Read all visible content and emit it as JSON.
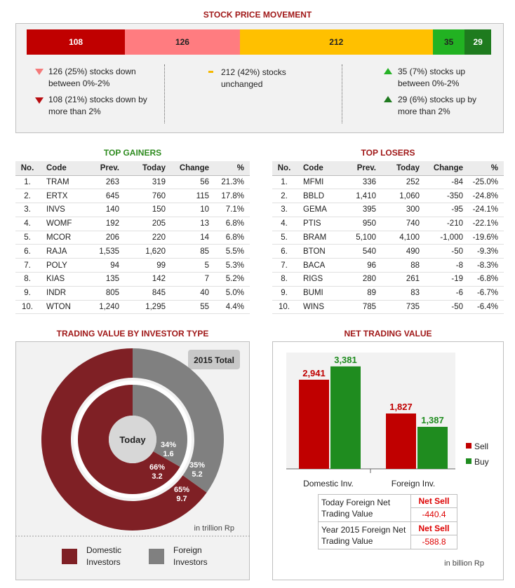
{
  "colors": {
    "down_dark": "#c00000",
    "down_light": "#ff7c80",
    "unchanged": "#ffc000",
    "up_light": "#22b222",
    "up_dark": "#1e7b1e",
    "domestic": "#7f2025",
    "foreign": "#808080"
  },
  "movement": {
    "title": "STOCK PRICE MOVEMENT",
    "segments": [
      {
        "label": "108",
        "value": 108
      },
      {
        "label": "126",
        "value": 126
      },
      {
        "label": "212",
        "value": 212
      },
      {
        "label": "35",
        "value": 35
      },
      {
        "label": "29",
        "value": 29
      }
    ],
    "legend": {
      "down_0_2": "126 (25%) stocks down between 0%-2%",
      "down_2": "108 (21%) stocks down by more than 2%",
      "unchanged": "212 (42%) stocks unchanged",
      "up_0_2": "35 (7%) stocks up between 0%-2%",
      "up_2": "29 (6%) stocks up by more than 2%"
    }
  },
  "gainers": {
    "title": "TOP GAINERS",
    "headers": [
      "No.",
      "Code",
      "Prev.",
      "Today",
      "Change",
      "%"
    ],
    "rows": [
      [
        "1.",
        "TRAM",
        "263",
        "319",
        "56",
        "21.3%"
      ],
      [
        "2.",
        "ERTX",
        "645",
        "760",
        "115",
        "17.8%"
      ],
      [
        "3.",
        "INVS",
        "140",
        "150",
        "10",
        "7.1%"
      ],
      [
        "4.",
        "WOMF",
        "192",
        "205",
        "13",
        "6.8%"
      ],
      [
        "5.",
        "MCOR",
        "206",
        "220",
        "14",
        "6.8%"
      ],
      [
        "6.",
        "RAJA",
        "1,535",
        "1,620",
        "85",
        "5.5%"
      ],
      [
        "7.",
        "POLY",
        "94",
        "99",
        "5",
        "5.3%"
      ],
      [
        "8.",
        "KIAS",
        "135",
        "142",
        "7",
        "5.2%"
      ],
      [
        "9.",
        "INDR",
        "805",
        "845",
        "40",
        "5.0%"
      ],
      [
        "10.",
        "WTON",
        "1,240",
        "1,295",
        "55",
        "4.4%"
      ]
    ]
  },
  "losers": {
    "title": "TOP LOSERS",
    "headers": [
      "No.",
      "Code",
      "Prev.",
      "Today",
      "Change",
      "%"
    ],
    "rows": [
      [
        "1.",
        "MFMI",
        "336",
        "252",
        "-84",
        "-25.0%"
      ],
      [
        "2.",
        "BBLD",
        "1,410",
        "1,060",
        "-350",
        "-24.8%"
      ],
      [
        "3.",
        "GEMA",
        "395",
        "300",
        "-95",
        "-24.1%"
      ],
      [
        "4.",
        "PTIS",
        "950",
        "740",
        "-210",
        "-22.1%"
      ],
      [
        "5.",
        "BRAM",
        "5,100",
        "4,100",
        "-1,000",
        "-19.6%"
      ],
      [
        "6.",
        "BTON",
        "540",
        "490",
        "-50",
        "-9.3%"
      ],
      [
        "7.",
        "BACA",
        "96",
        "88",
        "-8",
        "-8.3%"
      ],
      [
        "8.",
        "RIGS",
        "280",
        "261",
        "-19",
        "-6.8%"
      ],
      [
        "9.",
        "BUMI",
        "89",
        "83",
        "-6",
        "-6.7%"
      ],
      [
        "10.",
        "WINS",
        "785",
        "735",
        "-50",
        "-6.4%"
      ]
    ]
  },
  "investor": {
    "title": "TRADING VALUE BY INVESTOR TYPE",
    "total_label": "2015 Total",
    "center_label": "Today",
    "unit": "in trillion Rp",
    "legend_domestic": "Domestic Investors",
    "legend_foreign": "Foreign Investors",
    "today_domestic_pct": "66%",
    "today_domestic_val": "3.2",
    "today_foreign_pct": "34%",
    "today_foreign_val": "1.6",
    "total_domestic_pct": "65%",
    "total_domestic_val": "9.7",
    "total_foreign_pct": "35%",
    "total_foreign_val": "5.2"
  },
  "net": {
    "title": "NET TRADING VALUE",
    "unit": "in billion Rp",
    "legend_sell": "Sell",
    "legend_buy": "Buy",
    "today_foreign_label": "Today Foreign Net Trading Value",
    "today_foreign_status": "Net Sell",
    "today_foreign_value": "-440.4",
    "year_foreign_label": "Year 2015 Foreign Net Trading Value",
    "year_foreign_status": "Net Sell",
    "year_foreign_value": "-588.8"
  },
  "chart_data": [
    {
      "type": "pie",
      "title": "Today",
      "categories": [
        "Domestic Investors",
        "Foreign Investors"
      ],
      "values": [
        3.2,
        1.6
      ],
      "percents": [
        66,
        34
      ],
      "unit": "in trillion Rp"
    },
    {
      "type": "pie",
      "title": "2015 Total",
      "categories": [
        "Domestic Investors",
        "Foreign Investors"
      ],
      "values": [
        9.7,
        5.2
      ],
      "percents": [
        65,
        35
      ],
      "unit": "in trillion Rp"
    },
    {
      "type": "bar",
      "title": "NET TRADING VALUE",
      "categories": [
        "Domestic Inv.",
        "Foreign Inv."
      ],
      "series": [
        {
          "name": "Sell",
          "values": [
            2941,
            1827
          ],
          "labels": [
            "2,941",
            "1,827"
          ]
        },
        {
          "name": "Buy",
          "values": [
            3381,
            1387
          ],
          "labels": [
            "3,381",
            "1,387"
          ]
        }
      ],
      "ylim": [
        0,
        3700
      ],
      "unit": "in billion Rp"
    }
  ]
}
